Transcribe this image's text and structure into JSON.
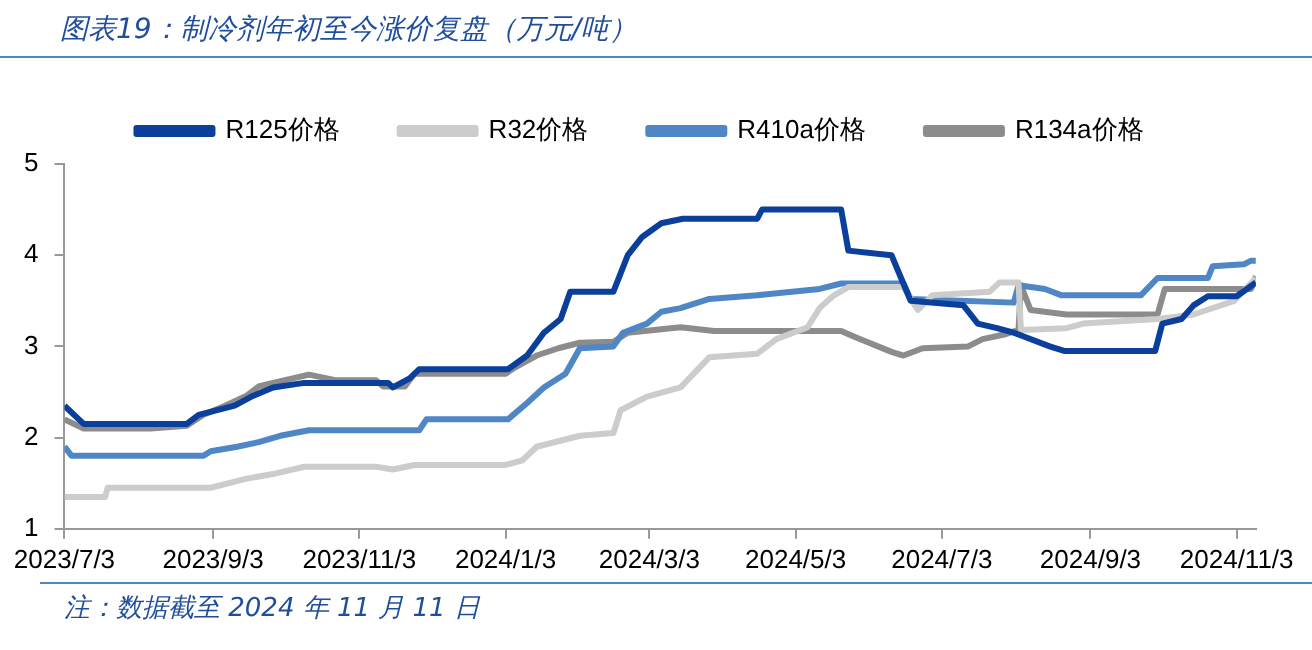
{
  "chart_data": {
    "type": "line",
    "title": "图表19：制冷剂年初至今涨价复盘（万元/吨）",
    "annotations": [
      "注：数据截至 2024 年 11 月 11 日"
    ],
    "xlim": [
      "2023-07-03",
      "2024-11-11"
    ],
    "xticks": [
      {
        "value": "2023-07-03",
        "label": "2023/7/3"
      },
      {
        "value": "2023-09-03",
        "label": "2023/9/3"
      },
      {
        "value": "2023-11-03",
        "label": "2023/11/3"
      },
      {
        "value": "2024-01-03",
        "label": "2024/1/3"
      },
      {
        "value": "2024-03-03",
        "label": "2024/3/3"
      },
      {
        "value": "2024-05-03",
        "label": "2024/5/3"
      },
      {
        "value": "2024-07-03",
        "label": "2024/7/3"
      },
      {
        "value": "2024-09-03",
        "label": "2024/9/3"
      },
      {
        "value": "2024-11-03",
        "label": "2024/11/3"
      }
    ],
    "ylim": [
      1,
      5
    ],
    "yticks": [
      1,
      2,
      3,
      4,
      5
    ],
    "grid": false,
    "legend": "top",
    "marker": "none",
    "line_style": "solid",
    "series": [
      {
        "name": "R125价格",
        "color": "#0a3f9b",
        "x": [
          "2023-07-03",
          "2023-07-11",
          "2023-08-23",
          "2023-08-28",
          "2023-09-12",
          "2023-09-19",
          "2023-09-28",
          "2023-10-11",
          "2023-11-15",
          "2023-11-17",
          "2023-11-24",
          "2023-11-28",
          "2024-01-04",
          "2024-01-12",
          "2024-01-19",
          "2024-01-26",
          "2024-01-30",
          "2024-02-17",
          "2024-02-23",
          "2024-02-29",
          "2024-03-08",
          "2024-03-17",
          "2024-04-17",
          "2024-04-19",
          "2024-05-22",
          "2024-05-25",
          "2024-06-12",
          "2024-06-16",
          "2024-06-20",
          "2024-07-12",
          "2024-07-18",
          "2024-07-26",
          "2024-08-02",
          "2024-08-07",
          "2024-08-17",
          "2024-08-23",
          "2024-09-30",
          "2024-10-03",
          "2024-10-11",
          "2024-10-16",
          "2024-10-22",
          "2024-11-03",
          "2024-11-11"
        ],
        "values": [
          2.35,
          2.15,
          2.15,
          2.25,
          2.35,
          2.45,
          2.55,
          2.6,
          2.6,
          2.55,
          2.65,
          2.75,
          2.75,
          2.9,
          3.15,
          3.3,
          3.6,
          3.6,
          4.0,
          4.2,
          4.35,
          4.4,
          4.4,
          4.5,
          4.5,
          4.05,
          4.0,
          3.75,
          3.5,
          3.45,
          3.25,
          3.2,
          3.15,
          3.1,
          3.0,
          2.95,
          2.95,
          3.25,
          3.3,
          3.45,
          3.55,
          3.55,
          3.7
        ]
      },
      {
        "name": "R32价格",
        "color": "#cccccc",
        "x": [
          "2023-07-03",
          "2023-07-20",
          "2023-07-21",
          "2023-09-02",
          "2023-09-17",
          "2023-09-28",
          "2023-10-11",
          "2023-11-10",
          "2023-11-17",
          "2023-11-26",
          "2024-01-03",
          "2024-01-10",
          "2024-01-16",
          "2024-02-03",
          "2024-02-17",
          "2024-02-20",
          "2024-03-02",
          "2024-03-16",
          "2024-03-28",
          "2024-04-17",
          "2024-04-25",
          "2024-05-08",
          "2024-05-13",
          "2024-05-19",
          "2024-05-25",
          "2024-06-17",
          "2024-06-23",
          "2024-06-29",
          "2024-07-23",
          "2024-07-27",
          "2024-08-04",
          "2024-08-05",
          "2024-08-24",
          "2024-08-31",
          "2024-10-01",
          "2024-10-16",
          "2024-11-02",
          "2024-11-11"
        ],
        "values": [
          1.35,
          1.35,
          1.45,
          1.45,
          1.55,
          1.6,
          1.68,
          1.68,
          1.65,
          1.7,
          1.7,
          1.75,
          1.9,
          2.02,
          2.05,
          2.3,
          2.45,
          2.55,
          2.88,
          2.92,
          3.08,
          3.21,
          3.42,
          3.56,
          3.65,
          3.65,
          3.4,
          3.56,
          3.6,
          3.7,
          3.7,
          3.18,
          3.2,
          3.25,
          3.3,
          3.35,
          3.5,
          3.75
        ]
      },
      {
        "name": "R410a价格",
        "color": "#4f86c6",
        "x": [
          "2023-07-03",
          "2023-07-06",
          "2023-08-30",
          "2023-09-02",
          "2023-09-13",
          "2023-09-22",
          "2023-10-01",
          "2023-10-13",
          "2023-11-28",
          "2023-12-01",
          "2024-01-04",
          "2024-01-12",
          "2024-01-19",
          "2024-01-28",
          "2024-02-03",
          "2024-02-17",
          "2024-02-21",
          "2024-03-02",
          "2024-03-08",
          "2024-03-16",
          "2024-03-28",
          "2024-04-17",
          "2024-05-13",
          "2024-05-22",
          "2024-06-17",
          "2024-06-20",
          "2024-08-02",
          "2024-08-04",
          "2024-08-15",
          "2024-08-22",
          "2024-09-24",
          "2024-10-01",
          "2024-10-22",
          "2024-10-24",
          "2024-11-06",
          "2024-11-09",
          "2024-11-11"
        ],
        "values": [
          1.9,
          1.8,
          1.8,
          1.85,
          1.9,
          1.95,
          2.02,
          2.08,
          2.08,
          2.2,
          2.2,
          2.38,
          2.55,
          2.7,
          2.98,
          3.0,
          3.15,
          3.25,
          3.38,
          3.42,
          3.52,
          3.56,
          3.63,
          3.69,
          3.69,
          3.52,
          3.48,
          3.67,
          3.63,
          3.56,
          3.56,
          3.75,
          3.75,
          3.88,
          3.9,
          3.94,
          3.94
        ]
      },
      {
        "name": "R134a价格",
        "color": "#8c8c8c",
        "x": [
          "2023-07-03",
          "2023-07-11",
          "2023-08-08",
          "2023-08-23",
          "2023-08-30",
          "2023-09-08",
          "2023-09-17",
          "2023-09-22",
          "2023-09-28",
          "2023-10-13",
          "2023-10-24",
          "2023-11-10",
          "2023-11-13",
          "2023-11-22",
          "2023-11-26",
          "2024-01-03",
          "2024-01-07",
          "2024-01-16",
          "2024-01-25",
          "2024-02-03",
          "2024-02-17",
          "2024-02-23",
          "2024-03-16",
          "2024-03-30",
          "2024-05-22",
          "2024-05-28",
          "2024-06-12",
          "2024-06-17",
          "2024-06-25",
          "2024-07-14",
          "2024-07-20",
          "2024-07-29",
          "2024-08-04",
          "2024-08-05",
          "2024-08-09",
          "2024-08-24",
          "2024-10-01",
          "2024-10-04",
          "2024-11-09",
          "2024-11-11"
        ],
        "values": [
          2.2,
          2.1,
          2.1,
          2.13,
          2.25,
          2.35,
          2.46,
          2.56,
          2.6,
          2.69,
          2.63,
          2.63,
          2.56,
          2.56,
          2.7,
          2.7,
          2.77,
          2.9,
          2.98,
          3.04,
          3.05,
          3.15,
          3.21,
          3.17,
          3.17,
          3.1,
          2.94,
          2.9,
          2.98,
          3.0,
          3.08,
          3.13,
          3.18,
          3.67,
          3.4,
          3.35,
          3.35,
          3.63,
          3.63,
          3.77
        ]
      }
    ]
  }
}
